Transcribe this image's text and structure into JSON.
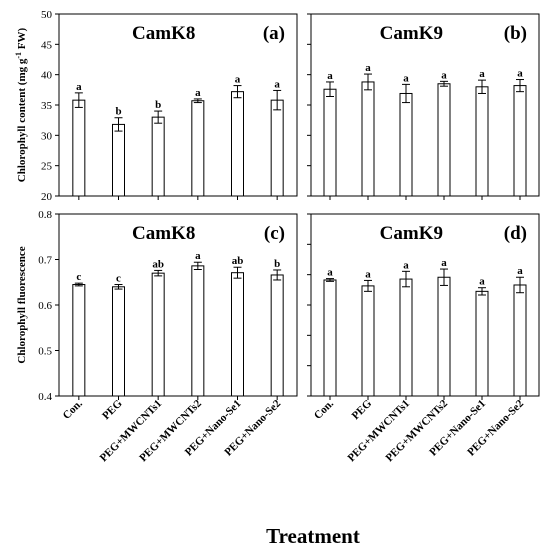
{
  "xlabel": "Treatment",
  "ylabel_top_main": "Chlorophyll content (mg g",
  "ylabel_top_sup": "-1",
  "ylabel_top_tail": " FW)",
  "ylabel_bottom": "Chlorophyll fluorescence",
  "chart_data": [
    {
      "type": "bar",
      "title": "CamK8",
      "letter": "(a)",
      "categories": [
        "Con.",
        "PEG",
        "PEG+MWCNTs1",
        "PEG+MWCNTs2",
        "PEG+Nano-Se1",
        "PEG+Nano-Se2"
      ],
      "values": [
        35.8,
        31.8,
        33.0,
        35.7,
        37.2,
        35.8
      ],
      "errors": [
        1.2,
        1.1,
        1.0,
        0.3,
        1.0,
        1.6
      ],
      "labels": [
        "a",
        "b",
        "b",
        "a",
        "a",
        "a"
      ],
      "ylim": [
        20,
        50
      ],
      "yticks": [
        "20",
        "25",
        "30",
        "35",
        "40",
        "45",
        "50"
      ]
    },
    {
      "type": "bar",
      "title": "CamK9",
      "letter": "(b)",
      "categories": [
        "Con.",
        "PEG",
        "PEG+MWCNTs1",
        "PEG+MWCNTs2",
        "PEG+Nano-Se1",
        "PEG+Nano-Se2"
      ],
      "values": [
        37.6,
        38.8,
        36.9,
        38.5,
        38.0,
        38.2
      ],
      "errors": [
        1.2,
        1.3,
        1.5,
        0.4,
        1.1,
        1.0
      ],
      "labels": [
        "a",
        "a",
        "a",
        "a",
        "a",
        "a"
      ],
      "ylim": [
        20,
        50
      ]
    },
    {
      "type": "bar",
      "title": "CamK8",
      "letter": "(c)",
      "categories": [
        "Con.",
        "PEG",
        "PEG+MWCNTs1",
        "PEG+MWCNTs2",
        "PEG+Nano-Se1",
        "PEG+Nano-Se2"
      ],
      "values": [
        0.645,
        0.64,
        0.67,
        0.686,
        0.671,
        0.666
      ],
      "errors": [
        0.003,
        0.005,
        0.006,
        0.008,
        0.012,
        0.011
      ],
      "labels": [
        "c",
        "c",
        "ab",
        "a",
        "ab",
        "b"
      ],
      "ylim": [
        0.4,
        0.8
      ],
      "yticks": [
        "0.4",
        "0.5",
        "0.6",
        "0.7",
        "0.8"
      ]
    },
    {
      "type": "bar",
      "title": "CamK9",
      "letter": "(d)",
      "categories": [
        "Con.",
        "PEG",
        "PEG+MWCNTs1",
        "PEG+MWCNTs2",
        "PEG+Nano-Se1",
        "PEG+Nano-Se2"
      ],
      "values": [
        0.655,
        0.642,
        0.657,
        0.661,
        0.63,
        0.644
      ],
      "errors": [
        0.003,
        0.012,
        0.017,
        0.018,
        0.008,
        0.017
      ],
      "labels": [
        "a",
        "a",
        "a",
        "a",
        "a",
        "a"
      ],
      "ylim": [
        0.4,
        0.8
      ]
    }
  ]
}
